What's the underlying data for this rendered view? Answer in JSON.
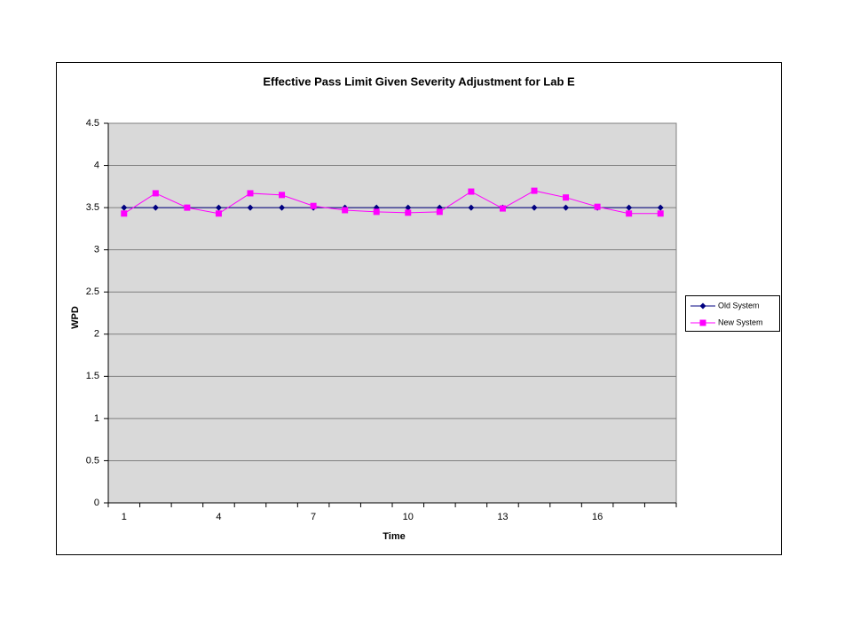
{
  "chart_data": {
    "type": "line",
    "title": "Effective Pass Limit Given Severity Adjustment for Lab E",
    "x_label": "Time",
    "y_label": "WPD",
    "categories": [
      "1",
      null,
      null,
      "4",
      null,
      null,
      "7",
      null,
      null,
      "10",
      null,
      null,
      "13",
      null,
      null,
      "16",
      null,
      null
    ],
    "series": [
      {
        "name": "Old System",
        "color": "#000080",
        "marker": "diamond",
        "values": [
          3.5,
          3.5,
          3.5,
          3.5,
          3.5,
          3.5,
          3.5,
          3.5,
          3.5,
          3.5,
          3.5,
          3.5,
          3.5,
          3.5,
          3.5,
          3.5,
          3.5,
          3.5
        ]
      },
      {
        "name": "New System",
        "color": "#ff00ff",
        "marker": "square",
        "values": [
          3.43,
          3.67,
          3.5,
          3.43,
          3.67,
          3.65,
          3.52,
          3.47,
          3.45,
          3.44,
          3.45,
          3.69,
          3.49,
          3.7,
          3.62,
          3.51,
          3.43,
          3.43
        ]
      }
    ],
    "ylim": [
      0,
      4.5
    ],
    "yticks": [
      0,
      0.5,
      1,
      1.5,
      2,
      2.5,
      3,
      3.5,
      4,
      4.5
    ],
    "grid": true,
    "legend": "right"
  }
}
